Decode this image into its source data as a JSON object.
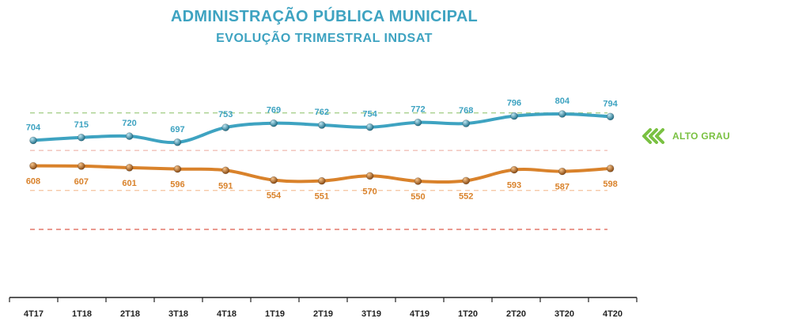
{
  "colors": {
    "title": "#3ea3c1",
    "series_blue": "#3ea3c1",
    "series_orange": "#d9822b",
    "ref_green": "#a8d08d",
    "ref_pink": "#f0c0b8",
    "ref_peach": "#f6c9a6",
    "ref_red": "#e06b5e",
    "alto_grau": "#7ac142",
    "axis": "#222222"
  },
  "legend": {
    "alto_grau_label": "ALTO GRAU",
    "alto_grau_icon": "double-chevron-left-icon"
  },
  "chart_data": {
    "type": "line",
    "title": "ADMINISTRAÇÃO PÚBLICA MUNICIPAL",
    "subtitle": "EVOLUÇÃO TRIMESTRAL INDSAT",
    "xlabel": "",
    "ylabel": "",
    "categories": [
      "4T17",
      "1T18",
      "2T18",
      "3T18",
      "4T18",
      "1T19",
      "2T19",
      "3T19",
      "4T19",
      "1T20",
      "2T20",
      "3T20",
      "4T20"
    ],
    "series": [
      {
        "values": [
          704,
          715,
          720,
          697,
          753,
          769,
          762,
          754,
          772,
          768,
          796,
          804,
          794
        ],
        "label_position": "above"
      },
      {
        "values": [
          608,
          607,
          601,
          596,
          591,
          554,
          551,
          570,
          550,
          552,
          593,
          587,
          598
        ],
        "label_position": "below"
      }
    ],
    "reference_lines": [
      {
        "value": 808,
        "style": "dashed",
        "color": "#a8d08d"
      },
      {
        "value": 666,
        "style": "dashed",
        "color": "#f0c0b8"
      },
      {
        "value": 515,
        "style": "dashed",
        "color": "#f6c9a6"
      },
      {
        "value": 368,
        "style": "dashed",
        "color": "#e06b5e"
      }
    ],
    "ylim": [
      0,
      830
    ],
    "grid": false,
    "legend": "right"
  }
}
